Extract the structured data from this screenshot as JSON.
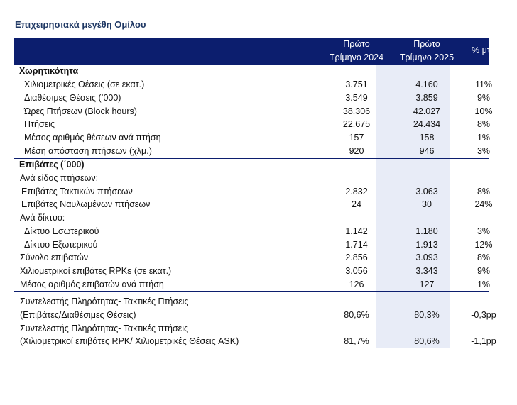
{
  "title": "Επιχειρησιακά μεγέθη Ομίλου",
  "header": {
    "col1_line1": "Πρώτο",
    "col1_line2": "Τρίμηνο 2024",
    "col2_line1": "Πρώτο",
    "col2_line2": "Τρίμηνο 2025",
    "col3": "% μτβ"
  },
  "sections": {
    "capacity": {
      "heading": "Χωρητικότητα",
      "rows": [
        {
          "label": "Χιλιομετρικές Θέσεις (σε εκατ.)",
          "v2024": "3.751",
          "v2025": "4.160",
          "change": "11%"
        },
        {
          "label": "Διαθέσιμες Θέσεις (’000)",
          "v2024": "3.549",
          "v2025": "3.859",
          "change": "9%"
        },
        {
          "label": "Ώρες Πτήσεων (Block hours)",
          "v2024": "38.306",
          "v2025": "42.027",
          "change": "10%"
        },
        {
          "label": "Πτήσεις",
          "v2024": "22.675",
          "v2025": "24.434",
          "change": "8%"
        },
        {
          "label": "Μέσος αριθμός θέσεων ανά πτήση",
          "v2024": "157",
          "v2025": "158",
          "change": "1%"
        },
        {
          "label": "Μέση απόσταση πτήσεων (χλμ.)",
          "v2024": "920",
          "v2025": "946",
          "change": "3%"
        }
      ]
    },
    "passengers": {
      "heading": "Επιβάτες (΄000)",
      "by_type_label": "Ανά είδος πτήσεων:",
      "by_type": [
        {
          "label": "Επιβάτες Τακτικών πτήσεων",
          "v2024": "2.832",
          "v2025": "3.063",
          "change": "8%"
        },
        {
          "label": "Επιβάτες Ναυλωμένων πτήσεων",
          "v2024": "24",
          "v2025": "30",
          "change": "24%"
        }
      ],
      "by_network_label": "Ανά δίκτυο:",
      "by_network": [
        {
          "label": "Δίκτυο Εσωτερικού",
          "v2024": "1.142",
          "v2025": "1.180",
          "change": "3%"
        },
        {
          "label": "Δίκτυο Εξωτερικού",
          "v2024": "1.714",
          "v2025": "1.913",
          "change": "12%"
        }
      ],
      "totals": [
        {
          "label": "Σύνολο επιβατών",
          "v2024": "2.856",
          "v2025": "3.093",
          "change": "8%"
        },
        {
          "label": "Χιλιομετρικοί επιβάτες RPKs (σε εκατ.)",
          "v2024": "3.056",
          "v2025": "3.343",
          "change": "9%"
        },
        {
          "label": "Μέσος αριθμός επιβατών ανά πτήση",
          "v2024": "126",
          "v2025": "127",
          "change": "1%"
        }
      ]
    },
    "load_factor": {
      "rows": [
        {
          "label_line1": "Συντελεστής Πληρότητας- Τακτικές Πτήσεις",
          "label_line2": "(Επιβάτες/Διαθέσιμες Θέσεις)",
          "v2024": "80,6%",
          "v2025": "80,3%",
          "change": "-0,3pp"
        },
        {
          "label_line1": "Συντελεστής Πληρότητας- Τακτικές πτήσεις",
          "label_line2": "(Χιλιομετρικοί επιβάτες RPK/ Χιλιομετρικές Θέσεις ASK)",
          "v2024": "81,7%",
          "v2025": "80,6%",
          "change": "-1,1pp"
        }
      ]
    }
  }
}
